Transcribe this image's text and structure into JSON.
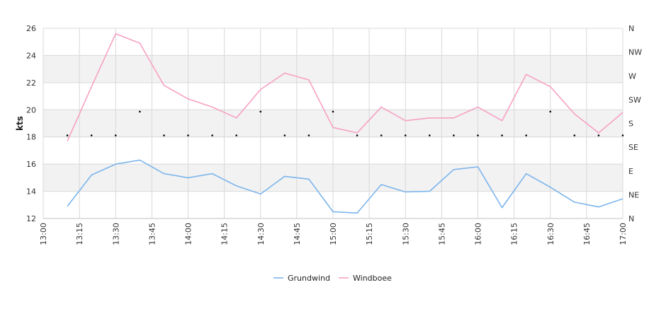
{
  "chart_data": {
    "type": "line",
    "ylabel": "kts",
    "ylim": [
      12,
      26
    ],
    "yticks": [
      12,
      14,
      16,
      18,
      20,
      22,
      24,
      26
    ],
    "xlim": [
      "13:00",
      "17:00"
    ],
    "xticks": [
      "13:00",
      "13:15",
      "13:30",
      "13:45",
      "14:00",
      "14:15",
      "14:30",
      "14:45",
      "15:00",
      "15:15",
      "15:30",
      "15:45",
      "16:00",
      "16:15",
      "16:30",
      "16:45",
      "17:00"
    ],
    "grid": true,
    "legend_position": "bottom",
    "direction_axis": {
      "labels": [
        "N",
        "NE",
        "E",
        "SE",
        "S",
        "SW",
        "W",
        "NW",
        "N"
      ]
    },
    "x": [
      "13:10",
      "13:20",
      "13:30",
      "13:40",
      "13:50",
      "14:00",
      "14:10",
      "14:20",
      "14:30",
      "14:40",
      "14:50",
      "15:00",
      "15:10",
      "15:20",
      "15:30",
      "15:40",
      "15:50",
      "16:00",
      "16:10",
      "16:20",
      "16:30",
      "16:40",
      "16:50",
      "17:00"
    ],
    "series": [
      {
        "name": "Grundwind",
        "color": "#7cb5ec",
        "values": [
          12.9,
          15.2,
          16.0,
          16.3,
          15.3,
          15.0,
          15.3,
          14.4,
          13.8,
          15.1,
          14.9,
          12.5,
          12.4,
          14.5,
          13.95,
          14.0,
          15.6,
          15.8,
          12.8,
          15.3,
          14.3,
          13.2,
          12.85,
          13.45
        ]
      },
      {
        "name": "Windboee",
        "color": "#f7a1c4",
        "values": [
          17.7,
          21.7,
          25.6,
          24.9,
          21.8,
          20.8,
          20.2,
          19.4,
          21.5,
          22.7,
          22.2,
          18.7,
          18.3,
          20.2,
          19.2,
          19.4,
          19.4,
          20.2,
          19.2,
          22.6,
          21.7,
          19.7,
          18.3,
          19.8
        ]
      }
    ],
    "direction_points": [
      {
        "x": "13:10",
        "dir": "S"
      },
      {
        "x": "13:20",
        "dir": "S"
      },
      {
        "x": "13:30",
        "dir": "S"
      },
      {
        "x": "13:40",
        "dir": "SW"
      },
      {
        "x": "13:50",
        "dir": "S"
      },
      {
        "x": "14:00",
        "dir": "S"
      },
      {
        "x": "14:10",
        "dir": "S"
      },
      {
        "x": "14:20",
        "dir": "S"
      },
      {
        "x": "14:30",
        "dir": "SW"
      },
      {
        "x": "14:40",
        "dir": "S"
      },
      {
        "x": "14:50",
        "dir": "S"
      },
      {
        "x": "15:00",
        "dir": "SW"
      },
      {
        "x": "15:10",
        "dir": "S"
      },
      {
        "x": "15:20",
        "dir": "S"
      },
      {
        "x": "15:30",
        "dir": "S"
      },
      {
        "x": "15:40",
        "dir": "S"
      },
      {
        "x": "15:50",
        "dir": "S"
      },
      {
        "x": "16:00",
        "dir": "S"
      },
      {
        "x": "16:10",
        "dir": "S"
      },
      {
        "x": "16:20",
        "dir": "S"
      },
      {
        "x": "16:30",
        "dir": "SW"
      },
      {
        "x": "16:40",
        "dir": "S"
      },
      {
        "x": "16:50",
        "dir": "S"
      },
      {
        "x": "17:00",
        "dir": "S"
      }
    ],
    "colors": {
      "band": "#f2f2f2",
      "grid": "#d8d8d8",
      "axis": "#c0c0c0",
      "marker": "#000000"
    }
  }
}
